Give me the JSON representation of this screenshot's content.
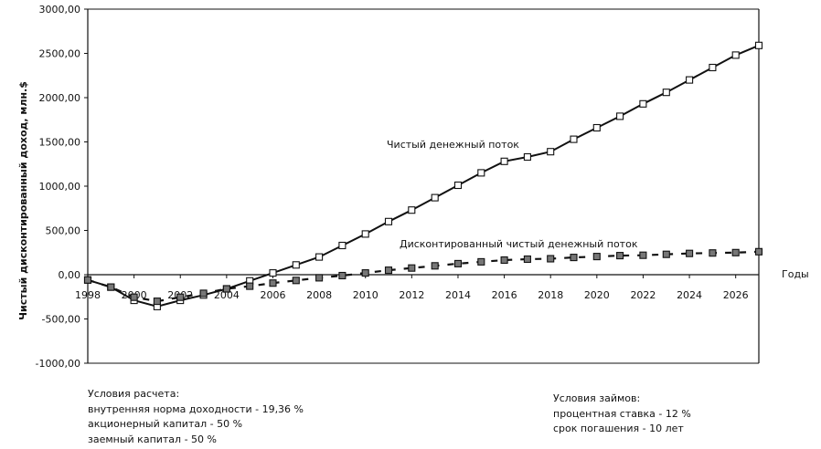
{
  "chart_data": {
    "type": "line",
    "ylabel": "Чистый дисконтированный доход, млн.$",
    "xlabel": "Годы",
    "ylim": [
      -1000,
      3000
    ],
    "xlim": [
      1998,
      2027
    ],
    "y_ticks": [
      "3000,00",
      "2500,00",
      "2000,00",
      "1500,00",
      "1000,00",
      "500,00",
      "0,00",
      "-500,00",
      "-1000,00"
    ],
    "x_ticks": [
      "1998",
      "2000",
      "2002",
      "2004",
      "2006",
      "2008",
      "2010",
      "2012",
      "2014",
      "2016",
      "2018",
      "2020",
      "2022",
      "2024",
      "2026"
    ],
    "grid": false,
    "x": [
      1998,
      1999,
      2000,
      2001,
      2002,
      2003,
      2004,
      2005,
      2006,
      2007,
      2008,
      2009,
      2010,
      2011,
      2012,
      2013,
      2014,
      2015,
      2016,
      2017,
      2018,
      2019,
      2020,
      2021,
      2022,
      2023,
      2024,
      2025,
      2026,
      2027
    ],
    "series": [
      {
        "name": "Чистый денежный поток",
        "style": "solid",
        "color": "#111111",
        "values": [
          -60,
          -140,
          -290,
          -360,
          -290,
          -230,
          -160,
          -70,
          20,
          110,
          200,
          330,
          460,
          600,
          730,
          870,
          1010,
          1150,
          1280,
          1330,
          1390,
          1530,
          1660,
          1790,
          1930,
          2060,
          2200,
          2340,
          2480,
          2590
        ]
      },
      {
        "name": "Дисконтированный чистый денежный поток",
        "style": "dashed",
        "color": "#111111",
        "values": [
          -60,
          -140,
          -255,
          -300,
          -255,
          -210,
          -160,
          -130,
          -95,
          -65,
          -35,
          -10,
          20,
          50,
          75,
          100,
          125,
          145,
          165,
          175,
          180,
          195,
          205,
          215,
          220,
          230,
          240,
          245,
          250,
          260
        ]
      }
    ]
  },
  "notes_left": {
    "title": "Условия расчета:",
    "irr": "внутренняя норма доходности -  19,36 %",
    "equity": "акционерный капитал - 50 %",
    "debt": "заемный капитал - 50 %"
  },
  "notes_right": {
    "title": "Условия займов:",
    "rate": "процентная ставка - 12 %",
    "term": "срок погашения - 10 лет"
  }
}
